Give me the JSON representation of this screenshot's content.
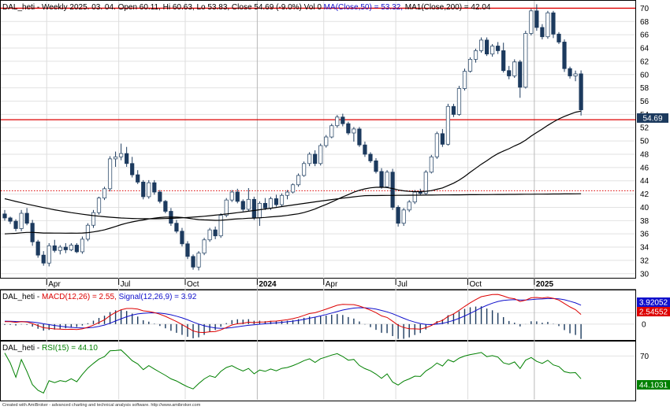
{
  "header": {
    "main_prefix": "DAL_heti - Weekly 2025. 03. 04. Open 60.11, Hi 60.63, Lo 53.83, Close 54.69 (-9.0%) Vol 0 ",
    "ma50_text": "MA(Close,50) = 53.32,",
    "ma200_text": " MA1(Close,200) = 42.04",
    "macd_prefix": "DAL_heti - ",
    "macd_text": "MACD(12,26) = 2.55,",
    "signal_text": " Signal(12,26,9) = 3.92",
    "rsi_prefix": "DAL_heti - ",
    "rsi_text": "RSI(15) = 44.10"
  },
  "badges": {
    "price": "54.69",
    "signal": "3.92052",
    "macd": "2.54552",
    "rsi": "44.1031"
  },
  "price_axis_ticks": [
    "70",
    "68",
    "66",
    "64",
    "62",
    "60",
    "58",
    "56",
    "54",
    "52",
    "50",
    "48",
    "46",
    "44",
    "42",
    "40",
    "38",
    "36",
    "34",
    "32",
    "30"
  ],
  "macd_axis_ticks": [
    "2",
    "0"
  ],
  "rsi_axis_ticks": [
    "70"
  ],
  "date_labels": [
    "Apr",
    "Jul",
    "Oct",
    "2024",
    "Apr",
    "Jul",
    "Oct",
    "2025"
  ],
  "footer": "Created with AmiBroker - advanced charting and technical analysis software. http://www.amibroker.com",
  "colors": {
    "up": "#ffffff",
    "down": "#1c3a5e",
    "ma50": "#000000",
    "ma200": "#000000",
    "macd": "#dd0000",
    "signal": "#1010cc",
    "rsi": "#008000",
    "resistance": "#dd0000"
  },
  "chart_data": [
    {
      "type": "candlestick",
      "title": "DAL_heti - Weekly 2025. 03. 04. Open 60.11, Hi 60.63, Lo 53.83, Close 54.69 (-9.0%) Vol 0",
      "timeframe": "weekly",
      "ylim": [
        29.5,
        71
      ],
      "grid": true,
      "horizontal_lines": [
        {
          "value": 70,
          "style": "solid",
          "color": "#dd0000"
        },
        {
          "value": 53.2,
          "style": "solid",
          "color": "#dd0000"
        },
        {
          "value": 42.5,
          "style": "dotted",
          "color": "#dd0000"
        }
      ],
      "last_close": 54.69,
      "ohlc": [
        [
          39.0,
          39.6,
          38.0,
          38.4
        ],
        [
          38.4,
          38.6,
          37.5,
          37.9
        ],
        [
          37.9,
          38.2,
          36.4,
          36.8
        ],
        [
          36.8,
          39.6,
          36.4,
          39.1
        ],
        [
          39.1,
          39.9,
          37.3,
          37.6
        ],
        [
          37.6,
          38.1,
          34.2,
          34.8
        ],
        [
          34.8,
          35.1,
          32.4,
          32.8
        ],
        [
          32.8,
          33.4,
          31.2,
          31.6
        ],
        [
          31.6,
          34.6,
          31.1,
          34.2
        ],
        [
          34.2,
          35.1,
          33.2,
          33.5
        ],
        [
          33.5,
          34.3,
          32.9,
          34.0
        ],
        [
          34.0,
          34.6,
          33.1,
          33.6
        ],
        [
          33.6,
          34.6,
          33.4,
          34.3
        ],
        [
          34.3,
          34.6,
          33.1,
          33.3
        ],
        [
          33.3,
          35.6,
          33.0,
          35.2
        ],
        [
          35.2,
          37.6,
          34.9,
          37.3
        ],
        [
          37.3,
          39.6,
          36.9,
          39.2
        ],
        [
          39.2,
          41.6,
          38.9,
          41.4
        ],
        [
          41.4,
          43.1,
          41.1,
          42.8
        ],
        [
          42.8,
          47.7,
          42.4,
          47.3
        ],
        [
          47.3,
          48.4,
          46.1,
          47.6
        ],
        [
          47.6,
          49.6,
          47.1,
          48.1
        ],
        [
          48.1,
          49.1,
          46.1,
          46.6
        ],
        [
          46.6,
          47.6,
          44.5,
          44.9
        ],
        [
          44.9,
          45.6,
          43.5,
          43.8
        ],
        [
          43.8,
          44.1,
          41.2,
          41.6
        ],
        [
          41.6,
          44.1,
          41.3,
          43.7
        ],
        [
          43.7,
          44.1,
          41.9,
          42.3
        ],
        [
          42.3,
          42.6,
          40.6,
          40.9
        ],
        [
          40.9,
          41.1,
          39.1,
          39.4
        ],
        [
          39.4,
          39.9,
          37.2,
          37.6
        ],
        [
          37.6,
          38.1,
          36.1,
          36.4
        ],
        [
          36.4,
          36.9,
          34.1,
          34.5
        ],
        [
          34.5,
          34.9,
          32.2,
          32.6
        ],
        [
          32.6,
          32.9,
          30.6,
          31.0
        ],
        [
          31.0,
          33.4,
          30.5,
          33.1
        ],
        [
          33.1,
          35.4,
          32.8,
          35.1
        ],
        [
          35.1,
          36.9,
          34.8,
          36.6
        ],
        [
          36.6,
          37.1,
          35.2,
          35.7
        ],
        [
          35.7,
          39.1,
          35.4,
          38.8
        ],
        [
          38.8,
          41.4,
          38.5,
          41.1
        ],
        [
          41.1,
          42.6,
          40.8,
          42.3
        ],
        [
          42.3,
          42.8,
          40.6,
          40.9
        ],
        [
          40.9,
          41.2,
          39.4,
          39.7
        ],
        [
          39.7,
          42.9,
          39.4,
          41.2
        ],
        [
          41.2,
          41.6,
          38.1,
          38.4
        ],
        [
          38.4,
          40.9,
          37.2,
          40.6
        ],
        [
          40.6,
          41.4,
          39.6,
          39.9
        ],
        [
          39.9,
          41.6,
          39.6,
          41.3
        ],
        [
          41.3,
          41.9,
          40.1,
          40.4
        ],
        [
          40.4,
          42.1,
          40.1,
          41.8
        ],
        [
          41.8,
          42.6,
          41.2,
          42.3
        ],
        [
          42.3,
          43.6,
          42.1,
          43.4
        ],
        [
          43.4,
          45.1,
          43.1,
          44.8
        ],
        [
          44.8,
          46.9,
          44.6,
          46.6
        ],
        [
          46.6,
          48.3,
          46.2,
          48.0
        ],
        [
          48.0,
          48.6,
          46.2,
          46.6
        ],
        [
          46.6,
          49.6,
          46.3,
          49.3
        ],
        [
          49.3,
          50.9,
          49.0,
          50.6
        ],
        [
          50.6,
          52.6,
          50.4,
          52.3
        ],
        [
          52.3,
          53.9,
          52.0,
          53.6
        ],
        [
          53.6,
          54.1,
          52.2,
          52.6
        ],
        [
          52.6,
          52.9,
          50.9,
          51.2
        ],
        [
          51.2,
          52.1,
          49.9,
          51.8
        ],
        [
          51.8,
          52.1,
          49.1,
          49.4
        ],
        [
          49.4,
          49.9,
          47.6,
          48.0
        ],
        [
          48.0,
          48.3,
          46.7,
          47.0
        ],
        [
          47.0,
          47.4,
          45.1,
          45.4
        ],
        [
          45.4,
          45.9,
          42.8,
          43.1
        ],
        [
          43.1,
          45.6,
          42.9,
          45.3
        ],
        [
          45.3,
          45.8,
          39.6,
          40.0
        ],
        [
          40.0,
          40.3,
          37.1,
          37.6
        ],
        [
          37.6,
          39.9,
          37.2,
          39.6
        ],
        [
          39.6,
          41.1,
          39.3,
          40.8
        ],
        [
          40.8,
          42.6,
          40.5,
          42.3
        ],
        [
          42.3,
          42.8,
          41.8,
          42.1
        ],
        [
          42.1,
          45.6,
          41.9,
          45.3
        ],
        [
          45.3,
          47.9,
          45.1,
          47.6
        ],
        [
          47.6,
          51.4,
          47.3,
          51.1
        ],
        [
          51.1,
          51.8,
          49.1,
          49.5
        ],
        [
          49.5,
          55.6,
          49.3,
          55.2
        ],
        [
          55.2,
          55.6,
          53.6,
          54.0
        ],
        [
          54.0,
          58.3,
          53.8,
          57.9
        ],
        [
          57.9,
          60.9,
          57.6,
          60.5
        ],
        [
          60.5,
          62.6,
          60.3,
          62.3
        ],
        [
          62.3,
          63.9,
          61.8,
          63.6
        ],
        [
          63.6,
          65.6,
          63.3,
          65.2
        ],
        [
          65.2,
          65.6,
          62.8,
          63.1
        ],
        [
          63.1,
          64.6,
          62.7,
          64.3
        ],
        [
          64.3,
          64.9,
          63.1,
          63.6
        ],
        [
          63.6,
          64.8,
          60.3,
          60.6
        ],
        [
          60.6,
          61.3,
          59.3,
          59.8
        ],
        [
          59.8,
          62.3,
          59.5,
          61.9
        ],
        [
          61.9,
          62.2,
          56.5,
          58.1
        ],
        [
          58.1,
          66.6,
          57.9,
          66.2
        ],
        [
          66.2,
          69.9,
          65.9,
          69.6
        ],
        [
          69.6,
          70.6,
          66.6,
          67.1
        ],
        [
          67.1,
          67.6,
          65.3,
          65.7
        ],
        [
          65.7,
          69.6,
          65.4,
          69.3
        ],
        [
          69.3,
          69.6,
          65.5,
          66.1
        ],
        [
          66.1,
          66.4,
          64.6,
          64.9
        ],
        [
          64.9,
          65.3,
          60.4,
          60.9
        ],
        [
          60.9,
          61.2,
          59.4,
          59.8
        ],
        [
          59.8,
          60.6,
          59.0,
          60.1
        ],
        [
          60.11,
          60.63,
          53.83,
          54.69
        ]
      ],
      "series": [
        {
          "name": "MA(Close,50)",
          "last": 53.32
        },
        {
          "name": "MA1(Close,200)",
          "last": 42.04
        }
      ]
    },
    {
      "type": "line",
      "title": "DAL_heti - MACD(12,26) = 2.55, Signal(12,26,9) = 3.92",
      "ylim": [
        -2.5,
        5.5
      ],
      "series": [
        {
          "name": "MACD(12,26)",
          "last": 2.55,
          "color": "#dd0000"
        },
        {
          "name": "Signal(12,26,9)",
          "last": 3.92,
          "color": "#1010cc"
        }
      ]
    },
    {
      "type": "line",
      "title": "DAL_heti - RSI(15) = 44.10",
      "ylim": [
        20,
        85
      ],
      "series": [
        {
          "name": "RSI(15)",
          "last": 44.1,
          "color": "#008000"
        }
      ]
    }
  ]
}
